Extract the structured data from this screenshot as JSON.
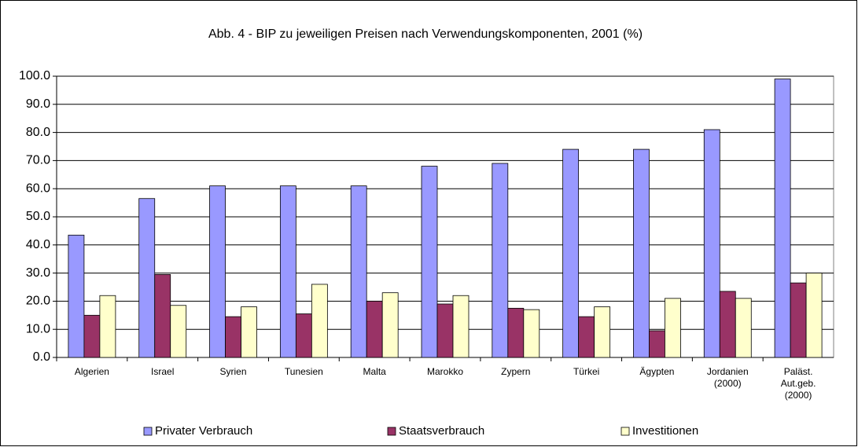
{
  "chart_data": {
    "type": "bar",
    "title": "Abb. 4 - BIP zu jeweiligen Preisen nach Verwendungskomponenten,  2001 (%)",
    "categories": [
      "Algerien",
      "Israel",
      "Syrien",
      "Tunesien",
      "Malta",
      "Marokko",
      "Zypern",
      "Türkei",
      "Ägypten",
      "Jordanien\n(2000)",
      "Paläst.\nAut.geb.\n(2000)"
    ],
    "series": [
      {
        "name": "Privater Verbrauch",
        "color": "#9999ff",
        "values": [
          43.5,
          56.5,
          61,
          61,
          61,
          68,
          69,
          74,
          74,
          81,
          99
        ]
      },
      {
        "name": "Staatsverbrauch",
        "color": "#993366",
        "values": [
          15,
          29.5,
          14.5,
          15.5,
          20,
          19,
          17.5,
          14.5,
          9.5,
          23.5,
          26.5
        ]
      },
      {
        "name": "Investitionen",
        "color": "#ffffcc",
        "values": [
          22,
          18.5,
          18,
          26,
          23,
          22,
          17,
          18,
          21,
          21,
          30
        ]
      }
    ],
    "ylim": [
      0,
      100
    ],
    "yticks": [
      {
        "value": 0,
        "label": "0.0"
      },
      {
        "value": 10,
        "label": "10.0"
      },
      {
        "value": 20,
        "label": "20.0"
      },
      {
        "value": 30,
        "label": "30.0"
      },
      {
        "value": 40,
        "label": "40.0"
      },
      {
        "value": 50,
        "label": "50.0"
      },
      {
        "value": 60,
        "label": "60.0"
      },
      {
        "value": 70,
        "label": "70.0"
      },
      {
        "value": 80,
        "label": "80.0"
      },
      {
        "value": 90,
        "label": "90.0"
      },
      {
        "value": 100,
        "label": "100.0"
      }
    ],
    "grid": true,
    "legend": "bottom"
  }
}
